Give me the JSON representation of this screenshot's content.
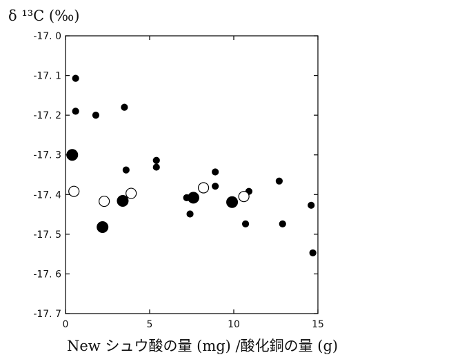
{
  "chart_data": {
    "type": "scatter",
    "title": "",
    "ylabel": "δ ¹³C (‰)",
    "xlabel": "New シュウ酸の量 (mg) /酸化銅の量 (g)",
    "xlim": [
      0,
      15
    ],
    "ylim": [
      -17.7,
      -17.0
    ],
    "x_ticks": [
      0,
      5,
      10,
      15
    ],
    "x_tick_labels": [
      "0",
      "5",
      "10",
      "15"
    ],
    "y_ticks": [
      -17.0,
      -17.1,
      -17.2,
      -17.3,
      -17.4,
      -17.5,
      -17.6,
      -17.7
    ],
    "y_tick_labels": [
      "-17. 0",
      "-17. 1",
      "-17. 2",
      "-17. 3",
      "-17. 4",
      "-17. 5",
      "-17. 6",
      "-17. 7"
    ],
    "grid": false,
    "legend": "none",
    "series": [
      {
        "marker": "small-filled-circle",
        "color": "#000000",
        "points": [
          [
            0.6,
            -17.107
          ],
          [
            0.6,
            -17.19
          ],
          [
            1.8,
            -17.2
          ],
          [
            3.5,
            -17.18
          ],
          [
            3.6,
            -17.338
          ],
          [
            5.4,
            -17.314
          ],
          [
            5.4,
            -17.331
          ],
          [
            7.2,
            -17.408
          ],
          [
            7.4,
            -17.449
          ],
          [
            8.9,
            -17.343
          ],
          [
            8.9,
            -17.379
          ],
          [
            10.7,
            -17.474
          ],
          [
            10.9,
            -17.392
          ],
          [
            12.7,
            -17.366
          ],
          [
            12.9,
            -17.474
          ],
          [
            14.6,
            -17.427
          ],
          [
            14.7,
            -17.547
          ]
        ]
      },
      {
        "marker": "large-filled-circle",
        "color": "#000000",
        "points": [
          [
            0.4,
            -17.3
          ],
          [
            2.2,
            -17.482
          ],
          [
            3.4,
            -17.416
          ],
          [
            7.6,
            -17.408
          ],
          [
            9.9,
            -17.419
          ]
        ]
      },
      {
        "marker": "open-circle",
        "color": "#000000",
        "points": [
          [
            0.5,
            -17.392
          ],
          [
            2.3,
            -17.417
          ],
          [
            3.9,
            -17.397
          ],
          [
            8.2,
            -17.383
          ],
          [
            10.6,
            -17.405
          ]
        ]
      }
    ]
  }
}
